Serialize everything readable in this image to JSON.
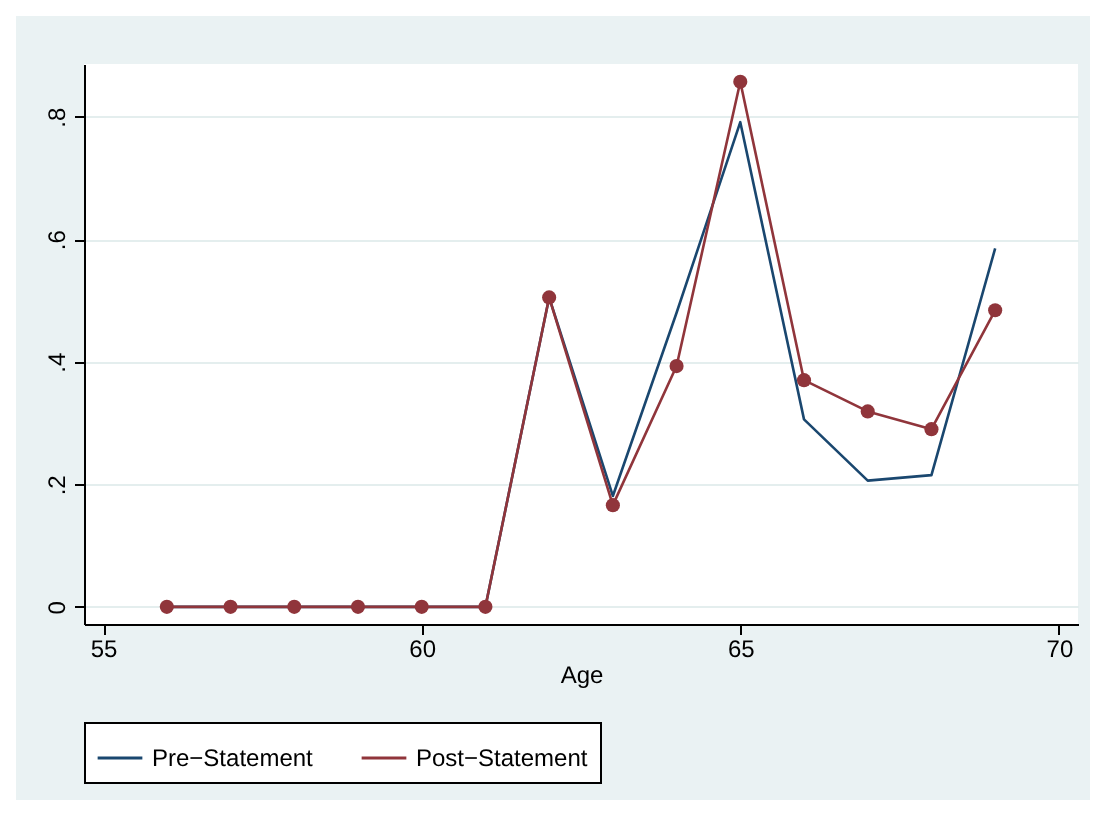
{
  "chart_data": {
    "type": "line",
    "xlabel": "Age",
    "x": [
      56,
      57,
      58,
      59,
      60,
      61,
      62,
      63,
      64,
      65,
      66,
      67,
      68,
      69
    ],
    "series": [
      {
        "name": "Pre−Statement",
        "color": "#1a476f",
        "marker": "none",
        "values": [
          0,
          0,
          0,
          0,
          0,
          0,
          0.505,
          0.181,
          0.48,
          0.791,
          0.306,
          0.206,
          0.215,
          0.585
        ]
      },
      {
        "name": "Post−Statement",
        "color": "#90353b",
        "marker": "circle",
        "values": [
          0,
          0,
          0,
          0,
          0,
          0,
          0.505,
          0.166,
          0.393,
          0.857,
          0.37,
          0.319,
          0.29,
          0.484
        ]
      }
    ],
    "xlim": [
      54.7,
      70.3
    ],
    "xticks": [
      55,
      60,
      65,
      70
    ],
    "ylim": [
      -0.028,
      0.886
    ],
    "yticks": [
      {
        "value": 0,
        "label": "0"
      },
      {
        "value": 0.2,
        "label": ".2"
      },
      {
        "value": 0.4,
        "label": ".4"
      },
      {
        "value": 0.6,
        "label": ".6"
      },
      {
        "value": 0.8,
        "label": ".8"
      }
    ],
    "grid": "y",
    "legend": "bottom"
  }
}
